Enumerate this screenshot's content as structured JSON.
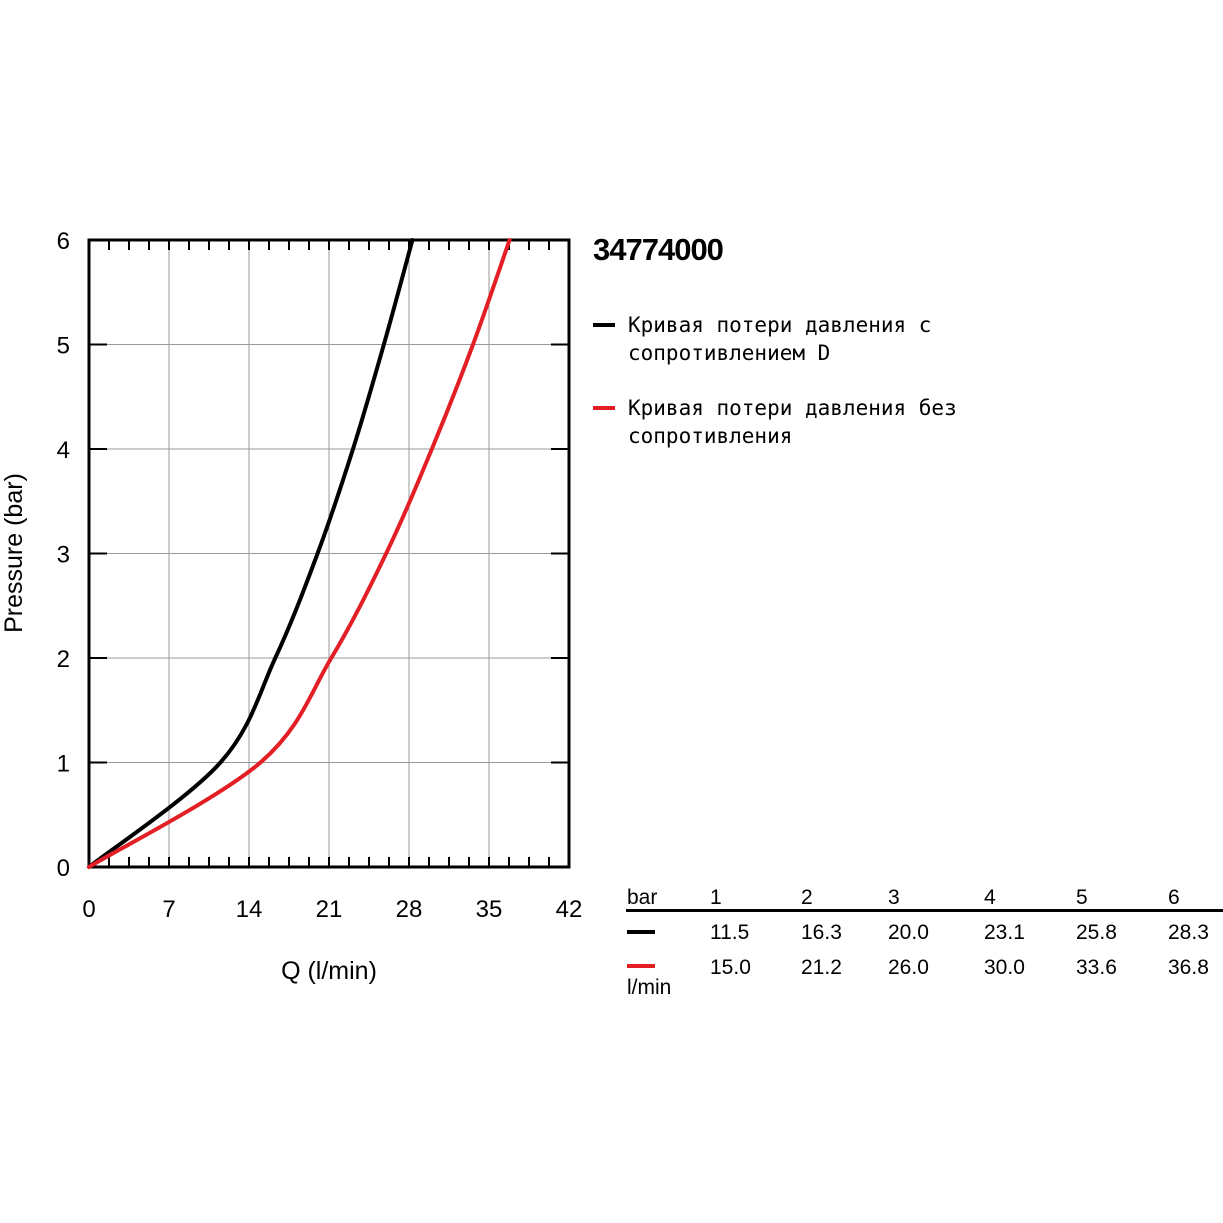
{
  "product": {
    "title": "34774000"
  },
  "legend": [
    {
      "text": "Кривая потери давления с\nсопротивлением D",
      "color": "#000000"
    },
    {
      "text": "Кривая потери давления без\nсопротивления",
      "color": "#e31e24"
    }
  ],
  "chart_data": {
    "type": "line",
    "xlabel": "Q (l/min)",
    "ylabel": "Pressure (bar)",
    "xlim": [
      0,
      42
    ],
    "ylim": [
      0,
      6
    ],
    "xticks": [
      0,
      7,
      14,
      21,
      28,
      35,
      42
    ],
    "yticks": [
      0,
      1,
      2,
      3,
      4,
      5,
      6
    ],
    "grid": true,
    "series": [
      {
        "color": "#000000",
        "x": [
          0,
          11.5,
          16.3,
          20.0,
          23.1,
          25.8,
          28.3
        ],
        "y": [
          0,
          1,
          2,
          3,
          4,
          5,
          6
        ]
      },
      {
        "color": "#e31e24",
        "x": [
          0,
          15.0,
          21.2,
          26.0,
          30.0,
          33.6,
          36.8
        ],
        "y": [
          0,
          1,
          2,
          3,
          4,
          5,
          6
        ]
      }
    ]
  },
  "table": {
    "header_label": "bar",
    "unit_label": "l/min",
    "pressures": [
      "1",
      "2",
      "3",
      "4",
      "5",
      "6"
    ],
    "rows": [
      {
        "color": "#000000",
        "values": [
          "11.5",
          "16.3",
          "20.0",
          "23.1",
          "25.8",
          "28.3"
        ]
      },
      {
        "color": "#e31e24",
        "values": [
          "15.0",
          "21.2",
          "26.0",
          "30.0",
          "33.6",
          "36.8"
        ]
      }
    ]
  }
}
